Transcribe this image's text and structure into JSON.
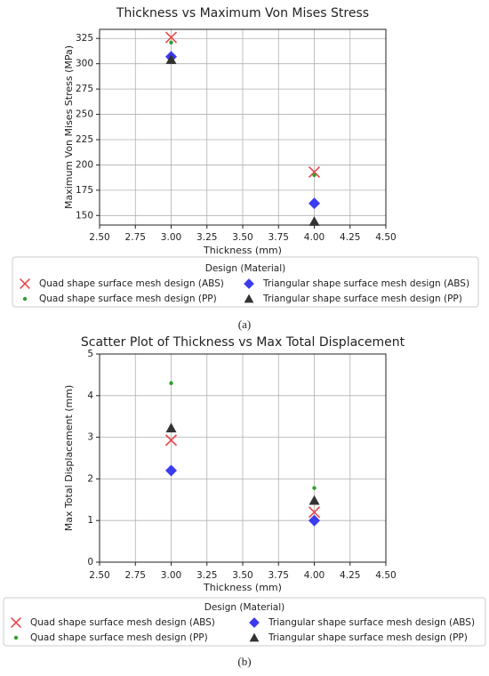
{
  "chart_data": [
    {
      "type": "scatter",
      "title": "Thickness vs Maximum Von Mises Stress",
      "x_label": "Thickness (mm)",
      "y_label": "Maximum Von Mises Stress (MPa)",
      "xlim": [
        2.5,
        4.5
      ],
      "xticks": [
        {
          "value": 2.5,
          "label": "2.50"
        },
        {
          "value": 2.75,
          "label": "2.75"
        },
        {
          "value": 3,
          "label": "3.00"
        },
        {
          "value": 3.25,
          "label": "3.25"
        },
        {
          "value": 3.5,
          "label": "3.50"
        },
        {
          "value": 3.75,
          "label": "3.75"
        },
        {
          "value": 4,
          "label": "4.00"
        },
        {
          "value": 4.25,
          "label": "4.25"
        },
        {
          "value": 4.5,
          "label": "4.50"
        }
      ],
      "ylim": [
        140.6,
        334
      ],
      "yticks": [
        150,
        175,
        200,
        225,
        250,
        275,
        300,
        325
      ],
      "grid": true,
      "legend_title": "Design (Material)",
      "caption": "(a)",
      "series": [
        {
          "name": "Quad shape surface mesh design (ABS)",
          "color": "#e8484c",
          "marker": "x",
          "x": [
            3.0,
            4.0
          ],
          "values": [
            326,
            193
          ]
        },
        {
          "name": "Quad shape surface mesh design (PP)",
          "color": "#2ca02c",
          "marker": "dot",
          "x": [
            3.0,
            4.0
          ],
          "values": [
            321,
            190
          ]
        },
        {
          "name": "Triangular shape surface mesh design (ABS)",
          "color": "#3b3bef",
          "marker": "diamond",
          "x": [
            3.0,
            4.0
          ],
          "values": [
            307,
            162
          ]
        },
        {
          "name": "Triangular shape surface mesh design (PP)",
          "color": "#333333",
          "marker": "triangle",
          "x": [
            3.0,
            4.0
          ],
          "values": [
            304,
            144
          ]
        }
      ]
    },
    {
      "type": "scatter",
      "title": "Scatter Plot of Thickness vs Max Total Displacement",
      "x_label": "Thickness (mm)",
      "y_label": "Max Total Displacement (mm)",
      "xlim": [
        2.5,
        4.5
      ],
      "xticks": [
        {
          "value": 2.5,
          "label": "2.50"
        },
        {
          "value": 2.75,
          "label": "2.75"
        },
        {
          "value": 3,
          "label": "3.00"
        },
        {
          "value": 3.25,
          "label": "3.25"
        },
        {
          "value": 3.5,
          "label": "3.50"
        },
        {
          "value": 3.75,
          "label": "3.75"
        },
        {
          "value": 4,
          "label": "4.00"
        },
        {
          "value": 4.25,
          "label": "4.25"
        },
        {
          "value": 4.5,
          "label": "4.50"
        }
      ],
      "ylim": [
        0,
        5
      ],
      "yticks": [
        0,
        1,
        2,
        3,
        4,
        5
      ],
      "grid": true,
      "legend_title": "Design (Material)",
      "caption": "(b)",
      "series": [
        {
          "name": "Quad shape surface mesh design (ABS)",
          "color": "#e8484c",
          "marker": "x",
          "x": [
            3.0,
            4.0
          ],
          "values": [
            2.93,
            1.2
          ]
        },
        {
          "name": "Quad shape surface mesh design (PP)",
          "color": "#2ca02c",
          "marker": "dot",
          "x": [
            3.0,
            4.0
          ],
          "values": [
            4.3,
            1.78
          ]
        },
        {
          "name": "Triangular shape surface mesh design (ABS)",
          "color": "#3b3bef",
          "marker": "diamond",
          "x": [
            3.0,
            4.0
          ],
          "values": [
            2.2,
            1.0
          ]
        },
        {
          "name": "Triangular shape surface mesh design (PP)",
          "color": "#333333",
          "marker": "triangle",
          "x": [
            3.0,
            4.0
          ],
          "values": [
            3.22,
            1.48
          ]
        }
      ]
    }
  ]
}
